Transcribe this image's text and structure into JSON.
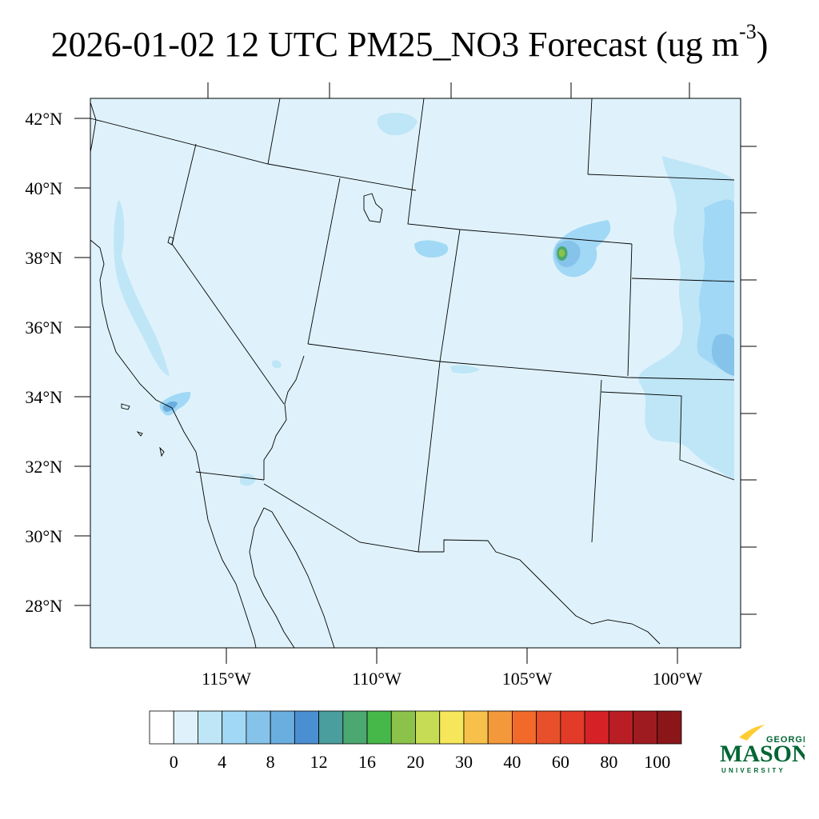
{
  "title": {
    "main": "2026-01-02 12 UTC PM25_NO3 Forecast (ug m",
    "superscript": "-3",
    "close": ")"
  },
  "map": {
    "background_color": "#dff2fb",
    "lat_labels": [
      "42°N",
      "40°N",
      "38°N",
      "36°N",
      "34°N",
      "32°N",
      "30°N",
      "28°N"
    ],
    "lon_labels": [
      "115°W",
      "110°W",
      "105°W",
      "100°W"
    ],
    "plumes_note": ""
  },
  "colorbar": {
    "colors": [
      "#ffffff",
      "#dff2fb",
      "#bfe6f7",
      "#a1d8f5",
      "#86c3ea",
      "#6aaee0",
      "#4a8fd1",
      "#4a9e9d",
      "#4aa870",
      "#46b84a",
      "#8bc34a",
      "#c6dc55",
      "#f5e65a",
      "#f7c04a",
      "#f4983c",
      "#f26a2a",
      "#e7502a",
      "#e23b28",
      "#d62227",
      "#b81e24",
      "#9e1b1f",
      "#8b1619"
    ],
    "tick_labels": [
      "0",
      "4",
      "8",
      "12",
      "16",
      "20",
      "30",
      "40",
      "60",
      "80",
      "100"
    ]
  },
  "logo": {
    "top": "GEORGE",
    "main": "MASON",
    "bottom": "UNIVERSITY",
    "green": "#006633",
    "gold": "#ffcc33"
  }
}
